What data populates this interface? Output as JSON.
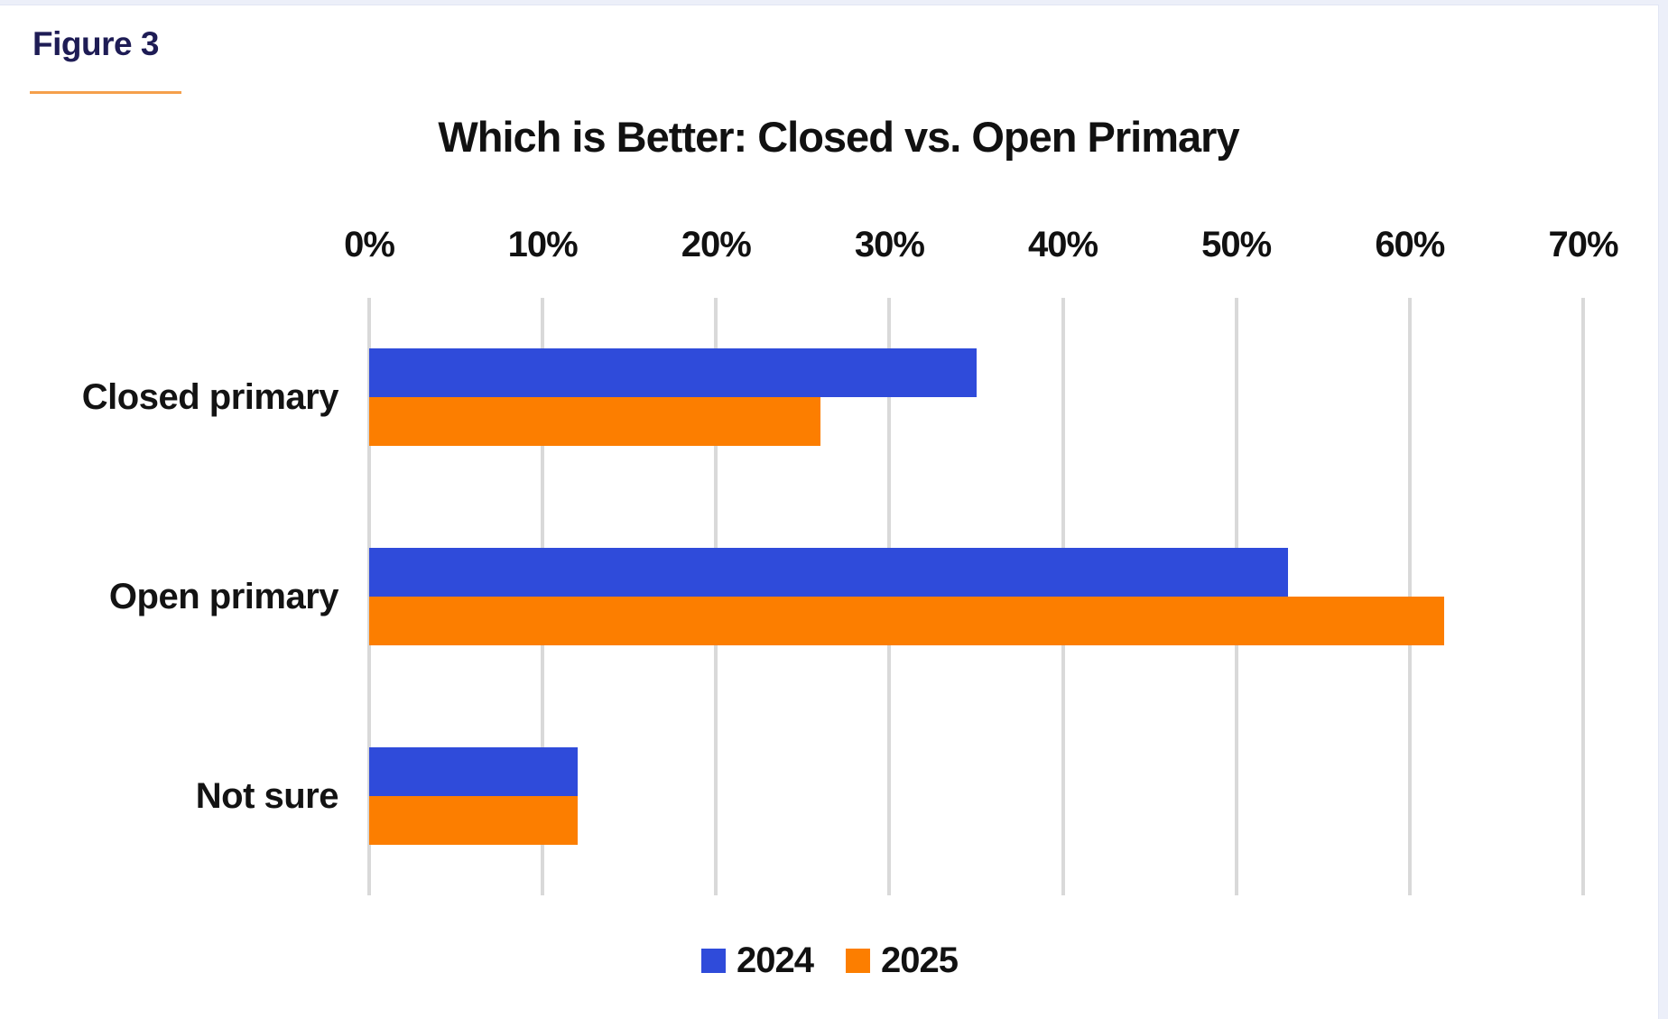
{
  "page": {
    "figure_label": "Figure 3"
  },
  "chart_data": {
    "type": "bar",
    "orientation": "horizontal",
    "title": "Which is Better: Closed vs. Open Primary",
    "categories": [
      "Closed primary",
      "Open primary",
      "Not sure"
    ],
    "series": [
      {
        "name": "2024",
        "color": "#2F4BDA",
        "values": [
          35,
          53,
          12
        ]
      },
      {
        "name": "2025",
        "color": "#FC7E00",
        "values": [
          26,
          62,
          12
        ]
      }
    ],
    "x_axis": {
      "unit": "%",
      "min": 0,
      "max": 70,
      "step": 10,
      "tick_labels": [
        "0%",
        "10%",
        "20%",
        "30%",
        "40%",
        "50%",
        "60%",
        "70%"
      ],
      "position": "top"
    },
    "grid": "vertical",
    "legend_position": "bottom"
  },
  "colors": {
    "figure_label": "#1E1C55",
    "figure_underline": "#F5A04B",
    "title_text": "#111111",
    "axis_text": "#111111",
    "category_text": "#131313",
    "gridline": "#D9D9D9",
    "page_background": "#ECEFF9",
    "card_background": "#FFFFFF"
  }
}
